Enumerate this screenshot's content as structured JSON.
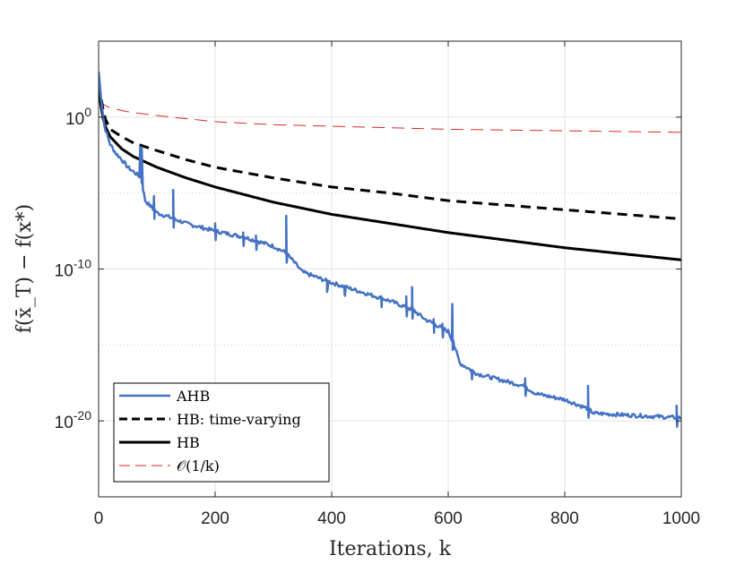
{
  "chart_data": {
    "type": "line",
    "title": "",
    "xlabel": "Iterations, k",
    "ylabel": "f(x̄_T) − f(x*)",
    "yscale": "log",
    "xlim": [
      0,
      1000
    ],
    "ylim_log10": [
      -25,
      5
    ],
    "x_ticks": [
      0,
      200,
      400,
      600,
      800,
      1000
    ],
    "x_tick_labels": [
      "0",
      "200",
      "400",
      "600",
      "800",
      "1000"
    ],
    "y_ticks_log10": [
      0,
      -10,
      -20
    ],
    "y_tick_labels": [
      {
        "base": "10",
        "exp": "0"
      },
      {
        "base": "10",
        "exp": "-10"
      },
      {
        "base": "10",
        "exp": "-20"
      }
    ],
    "minor_gridlines_log10": [
      -5,
      -15
    ],
    "grid": true,
    "legend_position": "bottom-left",
    "series": [
      {
        "name": "AHB",
        "color": "#4472C4",
        "style": "solid",
        "x": [
          0,
          5,
          10,
          20,
          30,
          40,
          50,
          60,
          70,
          72,
          74,
          80,
          100,
          130,
          150,
          200,
          250,
          300,
          320,
          330,
          350,
          400,
          450,
          500,
          520,
          540,
          560,
          580,
          600,
          610,
          620,
          650,
          700,
          730,
          750,
          800,
          840,
          850,
          900,
          950,
          1000
        ],
        "values_log10": [
          3.0,
          1.0,
          -0.6,
          -1.8,
          -2.4,
          -2.8,
          -3.3,
          -3.6,
          -3.9,
          -2.0,
          -4.3,
          -5.5,
          -6.3,
          -6.7,
          -7.0,
          -7.5,
          -7.9,
          -8.5,
          -8.9,
          -9.3,
          -10.2,
          -10.9,
          -11.5,
          -12.1,
          -12.4,
          -12.7,
          -13.3,
          -13.7,
          -14.1,
          -15.0,
          -16.2,
          -16.9,
          -17.4,
          -17.7,
          -18.2,
          -18.6,
          -19.2,
          -19.5,
          -19.6,
          -19.7,
          -19.8
        ],
        "spikes": [
          {
            "x": 72,
            "peak_log10": -2.1
          },
          {
            "x": 95,
            "peak_log10": -5.2
          },
          {
            "x": 128,
            "peak_log10": -4.8
          },
          {
            "x": 200,
            "peak_log10": -7.0
          },
          {
            "x": 248,
            "peak_log10": -7.6
          },
          {
            "x": 270,
            "peak_log10": -7.8
          },
          {
            "x": 322,
            "peak_log10": -6.5
          },
          {
            "x": 392,
            "peak_log10": -11.5
          },
          {
            "x": 422,
            "peak_log10": -11.5
          },
          {
            "x": 485,
            "peak_log10": -11.8
          },
          {
            "x": 528,
            "peak_log10": -11.8
          },
          {
            "x": 538,
            "peak_log10": -11.2
          },
          {
            "x": 575,
            "peak_log10": -13.3
          },
          {
            "x": 590,
            "peak_log10": -13.6
          },
          {
            "x": 607,
            "peak_log10": -12.3
          },
          {
            "x": 640,
            "peak_log10": -16.7
          },
          {
            "x": 732,
            "peak_log10": -17.2
          },
          {
            "x": 840,
            "peak_log10": -17.7
          },
          {
            "x": 992,
            "peak_log10": -19.0
          }
        ]
      },
      {
        "name": "HB: time-varying",
        "color": "#000000",
        "style": "dashed",
        "x": [
          0,
          10,
          20,
          40,
          60,
          100,
          150,
          200,
          300,
          400,
          500,
          600,
          700,
          800,
          900,
          1000
        ],
        "values_log10": [
          2.2,
          0.0,
          -0.8,
          -1.3,
          -1.7,
          -2.2,
          -2.8,
          -3.3,
          -4.0,
          -4.6,
          -5.0,
          -5.5,
          -5.8,
          -6.1,
          -6.4,
          -6.7
        ]
      },
      {
        "name": "HB",
        "color": "#000000",
        "style": "solid",
        "x": [
          0,
          5,
          10,
          20,
          40,
          60,
          100,
          150,
          200,
          300,
          400,
          500,
          600,
          700,
          800,
          900,
          1000
        ],
        "values_log10": [
          2.2,
          0.4,
          -0.5,
          -1.3,
          -2.1,
          -2.6,
          -3.3,
          -4.0,
          -4.6,
          -5.6,
          -6.4,
          -7.0,
          -7.6,
          -8.1,
          -8.6,
          -9.0,
          -9.4
        ]
      },
      {
        "name": "O(1/k)",
        "color": "#D62728",
        "style": "dashed",
        "x": [
          0,
          10,
          20,
          50,
          100,
          200,
          300,
          400,
          500,
          600,
          700,
          800,
          900,
          1000
        ],
        "values_log10": [
          1.0,
          0.8,
          0.6,
          0.35,
          0.1,
          -0.3,
          -0.5,
          -0.6,
          -0.7,
          -0.8,
          -0.85,
          -0.9,
          -0.95,
          -1.0
        ]
      }
    ]
  },
  "legend": {
    "items": [
      {
        "label": "AHB",
        "color": "#4472C4",
        "dash": ""
      },
      {
        "label": "HB: time-varying",
        "color": "#000000",
        "dash": "9,5"
      },
      {
        "label": "HB",
        "color": "#000000",
        "dash": ""
      },
      {
        "label": "𝒪(1/k)",
        "color": "#D62728",
        "dash": "12,6"
      }
    ]
  }
}
